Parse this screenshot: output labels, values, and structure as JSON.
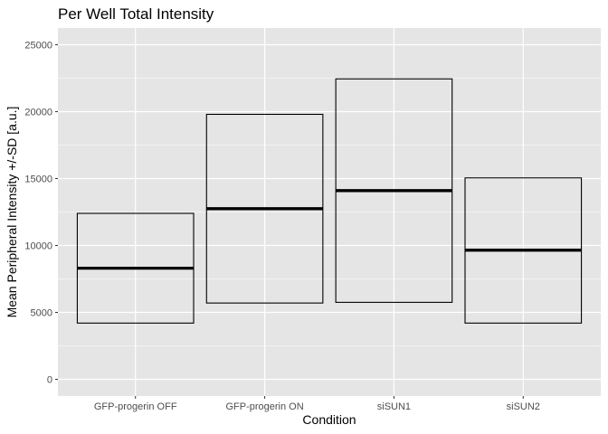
{
  "chart_data": {
    "type": "crossbar",
    "title": "Per Well Total Intensity",
    "xlabel": "Condition",
    "ylabel": "Mean Peripheral Intensity +/-SD [a.u.]",
    "ylim": [
      0,
      25000
    ],
    "yticks": [
      "0",
      "5000",
      "10000",
      "15000",
      "20000",
      "25000"
    ],
    "categories": [
      "GFP-progerin OFF",
      "GFP-progerin ON",
      "siSUN1",
      "siSUN2"
    ],
    "mean": [
      8300,
      12750,
      14100,
      9650
    ],
    "lower": [
      4200,
      5700,
      5750,
      4200
    ],
    "upper": [
      12400,
      19800,
      22450,
      15050
    ],
    "grid": true,
    "colors": {
      "panel": "#e5e5e5",
      "grid": "#ffffff",
      "box": "#000000",
      "tick": "#333333"
    }
  }
}
